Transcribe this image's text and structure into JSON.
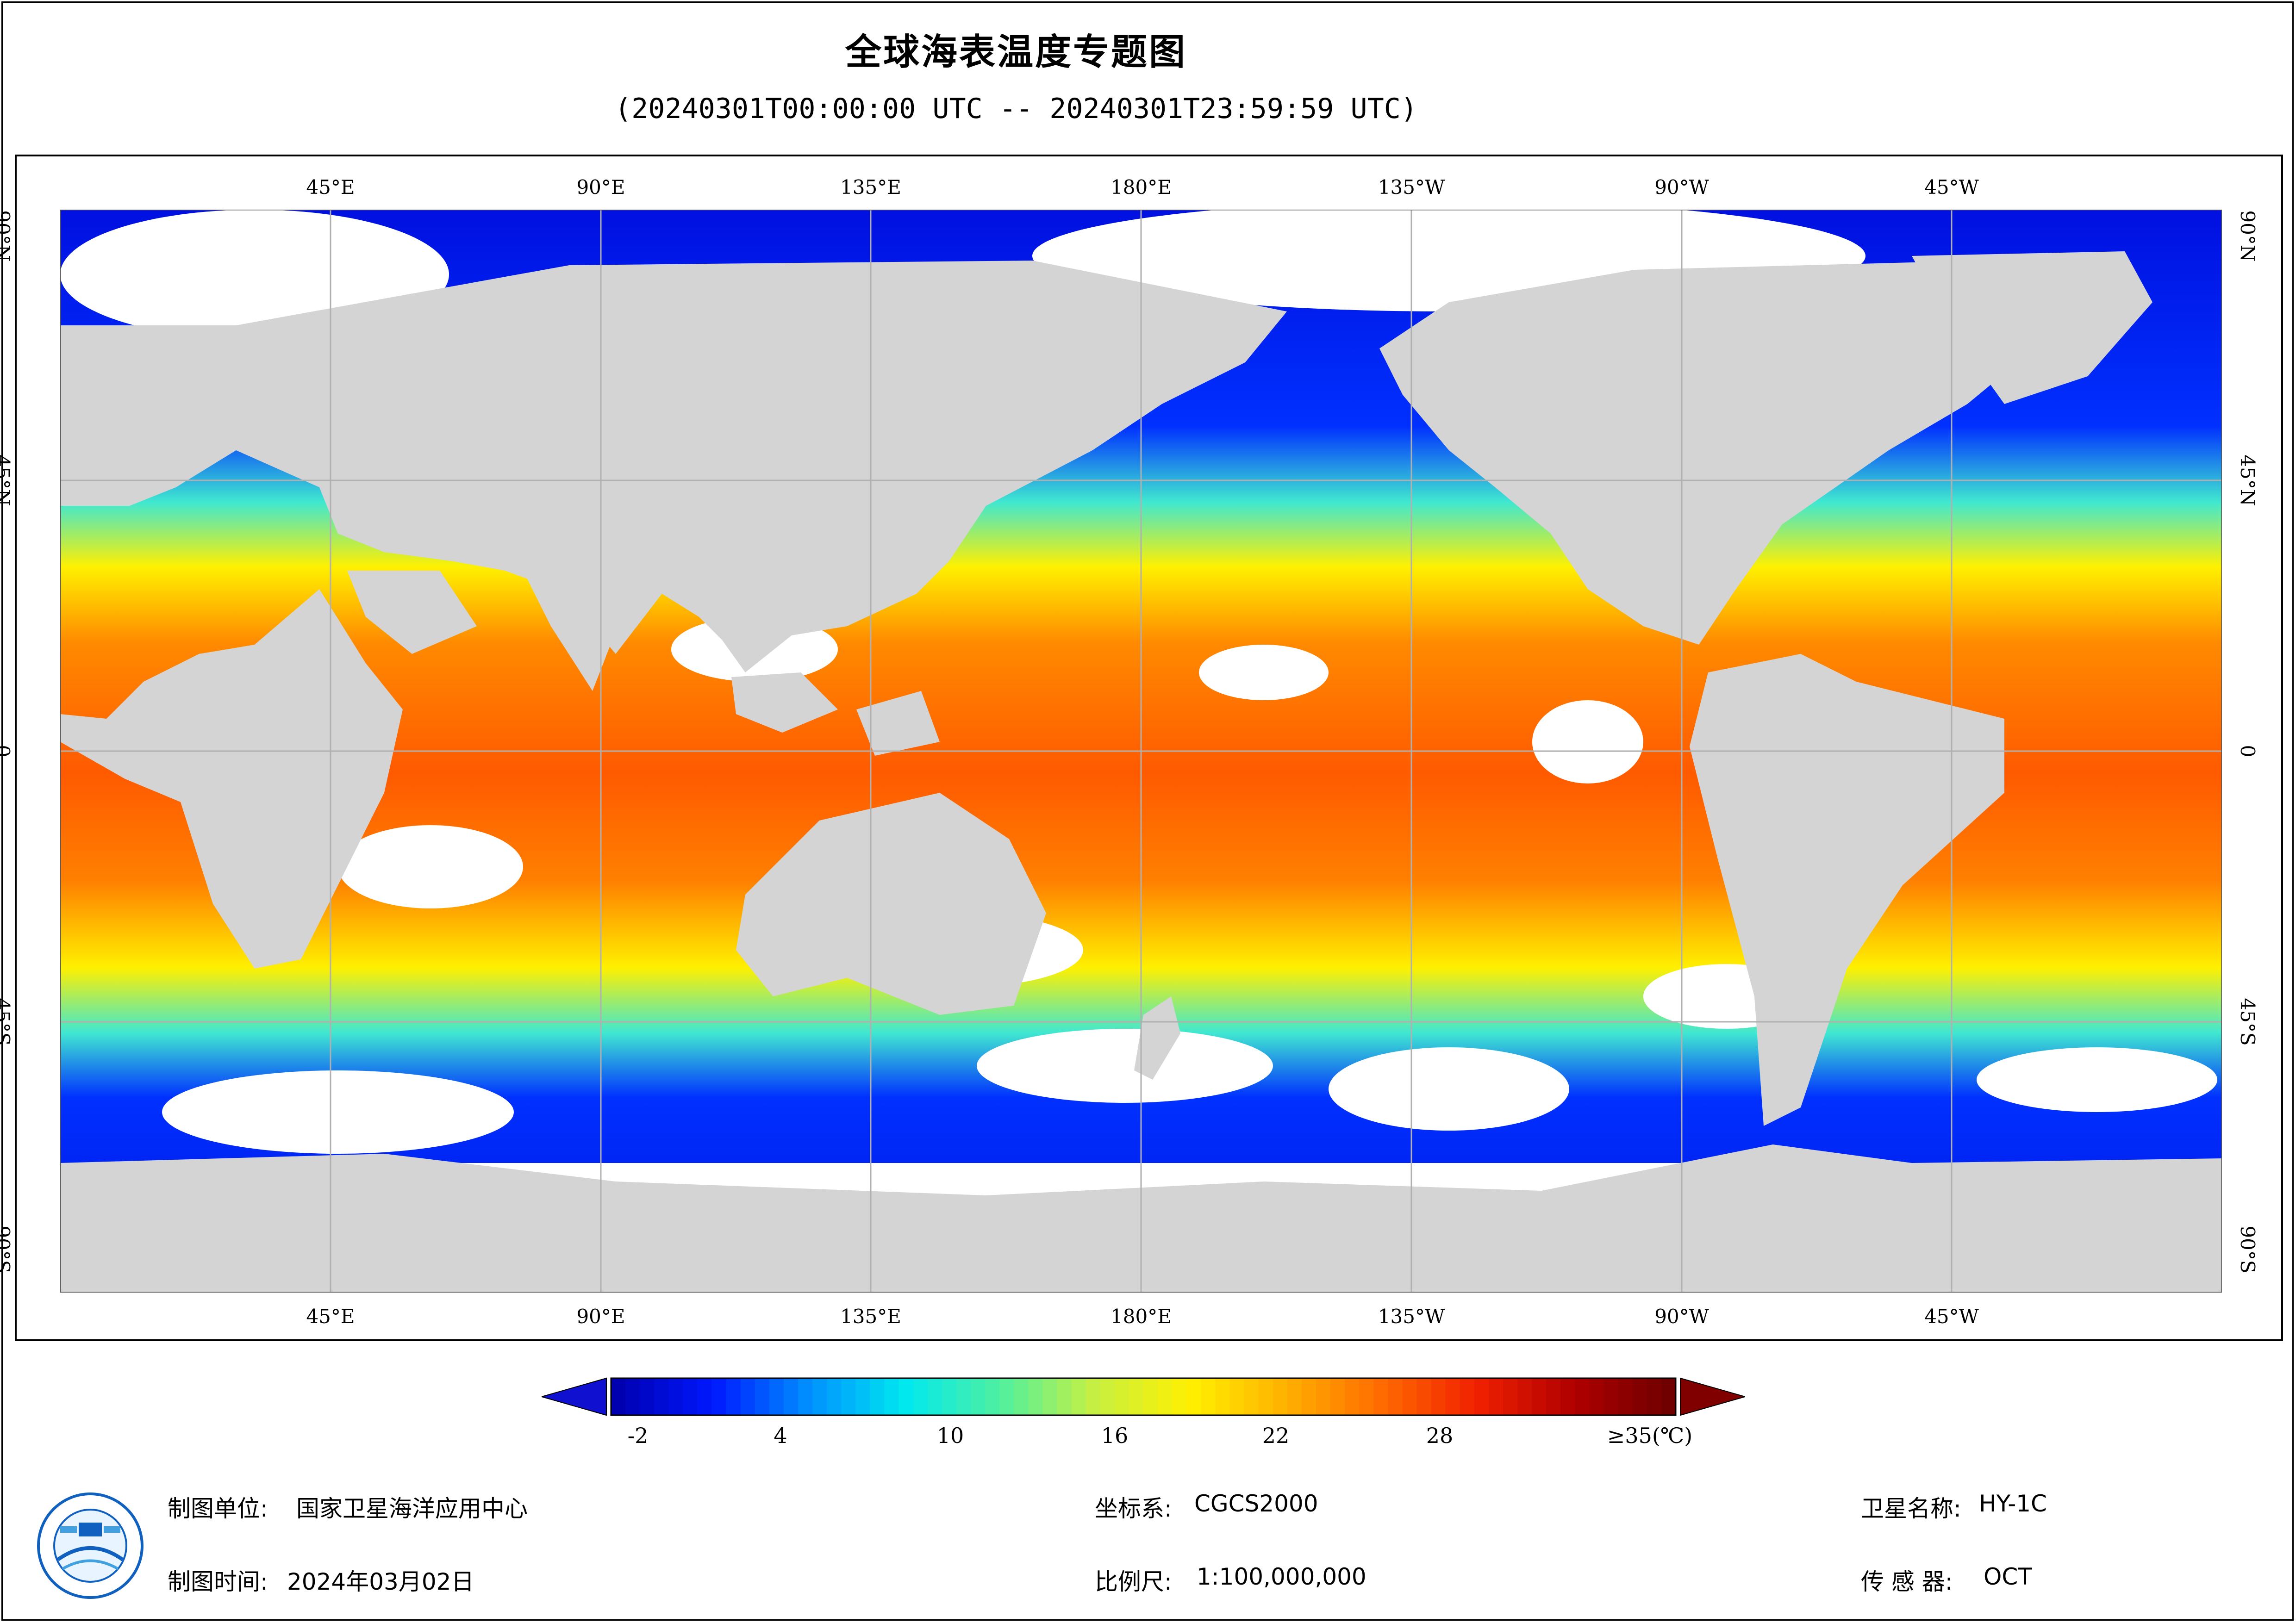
{
  "title": "全球海表温度专题图",
  "subtitle": "(20240301T00:00:00 UTC -- 20240301T23:59:59 UTC)",
  "map": {
    "lon_ticks_top": [
      "45°E",
      "90°E",
      "135°E",
      "180°E",
      "135°W",
      "90°W",
      "45°W"
    ],
    "lon_ticks_bottom": [
      "45°E",
      "90°E",
      "135°E",
      "180°E",
      "135°W",
      "90°W",
      "45°W"
    ],
    "lat_ticks": [
      "90°N",
      "45°N",
      "0",
      "45°S",
      "90°S"
    ],
    "land_color": "#d4d4d4",
    "cloud_color": "#ffffff",
    "grid_color": "#b0b0b0"
  },
  "colorbar": {
    "labels": [
      "-2",
      "4",
      "10",
      "16",
      "22",
      "28",
      "≥35(℃)"
    ],
    "min": -2,
    "max": 35,
    "unit": "℃",
    "colors": [
      "#0000b0",
      "#0018ff",
      "#0090ff",
      "#00e8f0",
      "#50f0a0",
      "#c8f040",
      "#fff000",
      "#ffb000",
      "#ff6a00",
      "#f02000",
      "#b00000",
      "#700000"
    ]
  },
  "footer": {
    "unit_label": "制图单位:",
    "unit_value": "国家卫星海洋应用中心",
    "time_label": "制图时间:",
    "time_value": "2024年03月02日",
    "coord_label": "坐标系:",
    "coord_value": "CGCS2000",
    "scale_label": "比例尺:",
    "scale_value": "1:100,000,000",
    "satellite_label": "卫星名称:",
    "satellite_value": "HY-1C",
    "sensor_label": "传 感 器:",
    "sensor_value": "OCT"
  },
  "logo_icon": "national-satellite-ocean-center-logo"
}
